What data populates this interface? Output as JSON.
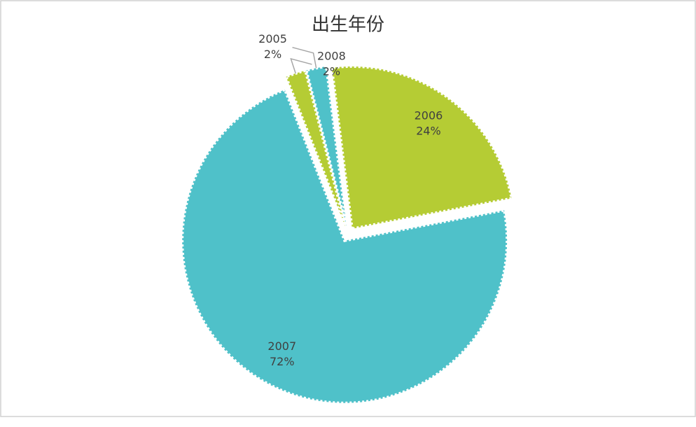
{
  "chart_data": {
    "type": "pie",
    "title": "出生年份",
    "categories": [
      "2005",
      "2006",
      "2007",
      "2008"
    ],
    "values": [
      2,
      24,
      72,
      2
    ],
    "value_labels": [
      "2%",
      "24%",
      "72%",
      "2%"
    ],
    "colors": [
      "#4fc1c9",
      "#b5cc34",
      "#4fc1c9",
      "#b5cc34"
    ]
  }
}
